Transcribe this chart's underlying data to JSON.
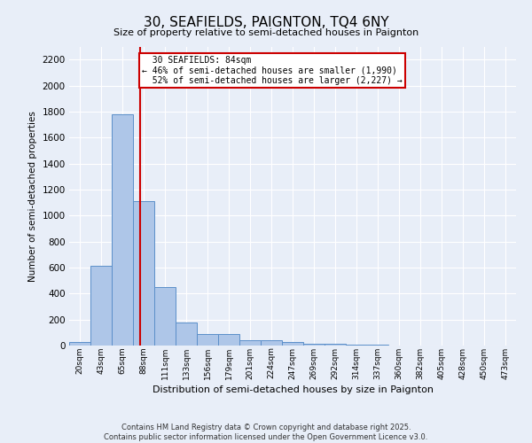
{
  "title": "30, SEAFIELDS, PAIGNTON, TQ4 6NY",
  "subtitle": "Size of property relative to semi-detached houses in Paignton",
  "xlabel": "Distribution of semi-detached houses by size in Paignton",
  "ylabel": "Number of semi-detached properties",
  "bins": [
    "20sqm",
    "43sqm",
    "65sqm",
    "88sqm",
    "111sqm",
    "133sqm",
    "156sqm",
    "179sqm",
    "201sqm",
    "224sqm",
    "247sqm",
    "269sqm",
    "292sqm",
    "314sqm",
    "337sqm",
    "360sqm",
    "382sqm",
    "405sqm",
    "428sqm",
    "450sqm",
    "473sqm"
  ],
  "values": [
    30,
    610,
    1780,
    1110,
    450,
    175,
    90,
    90,
    40,
    40,
    25,
    15,
    15,
    10,
    5,
    3,
    2,
    2,
    1,
    1,
    0
  ],
  "bar_color": "#aec6e8",
  "bar_edge_color": "#5b8fc9",
  "ylim": [
    0,
    2300
  ],
  "yticks": [
    0,
    200,
    400,
    600,
    800,
    1000,
    1200,
    1400,
    1600,
    1800,
    2000,
    2200
  ],
  "property_label": "30 SEAFIELDS: 84sqm",
  "pct_smaller": 46,
  "n_smaller": 1990,
  "pct_larger": 52,
  "n_larger": 2227,
  "vline_color": "#cc0000",
  "annotation_box_color": "#cc0000",
  "bg_color": "#e8eef8",
  "grid_color": "#ffffff",
  "footer_line1": "Contains HM Land Registry data © Crown copyright and database right 2025.",
  "footer_line2": "Contains public sector information licensed under the Open Government Licence v3.0."
}
